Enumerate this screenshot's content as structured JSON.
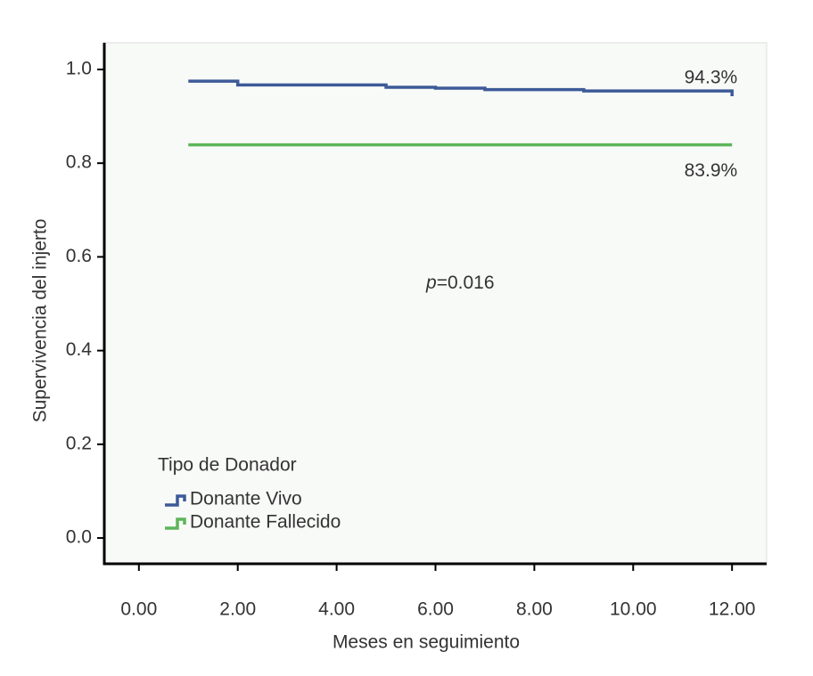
{
  "chart_data": {
    "type": "step",
    "xlabel": "Meses en seguimiento",
    "ylabel": "Supervivencia del injerto",
    "xlim": [
      -0.7,
      12.7
    ],
    "ylim": [
      -0.055,
      1.057
    ],
    "xticks": [
      {
        "value": 0,
        "label": "0.00"
      },
      {
        "value": 2,
        "label": "2.00"
      },
      {
        "value": 4,
        "label": "4.00"
      },
      {
        "value": 6,
        "label": "6.00"
      },
      {
        "value": 8,
        "label": "8.00"
      },
      {
        "value": 10,
        "label": "10.00"
      },
      {
        "value": 12,
        "label": "12.00"
      }
    ],
    "yticks": [
      {
        "value": 0,
        "label": "0.0"
      },
      0.2,
      0.4,
      0.6,
      0.8,
      {
        "value": 1,
        "label": "1.0"
      }
    ],
    "legend_title": "Tipo de Donador",
    "legend_position": "bottom-left",
    "series": [
      {
        "name": "Donante Vivo",
        "color": "#3d5a98",
        "x": [
          1,
          2,
          5,
          6,
          7,
          9,
          12
        ],
        "values": [
          0.975,
          0.967,
          0.962,
          0.96,
          0.957,
          0.954,
          0.943
        ]
      },
      {
        "name": "Donante Fallecido",
        "color": "#5db55a",
        "x": [
          1,
          12
        ],
        "values": [
          0.839,
          0.839
        ]
      }
    ],
    "annotations": [
      "94.3%",
      "83.9%"
    ],
    "p_annotation": {
      "symbol": "p",
      "text": "=0.016"
    }
  }
}
